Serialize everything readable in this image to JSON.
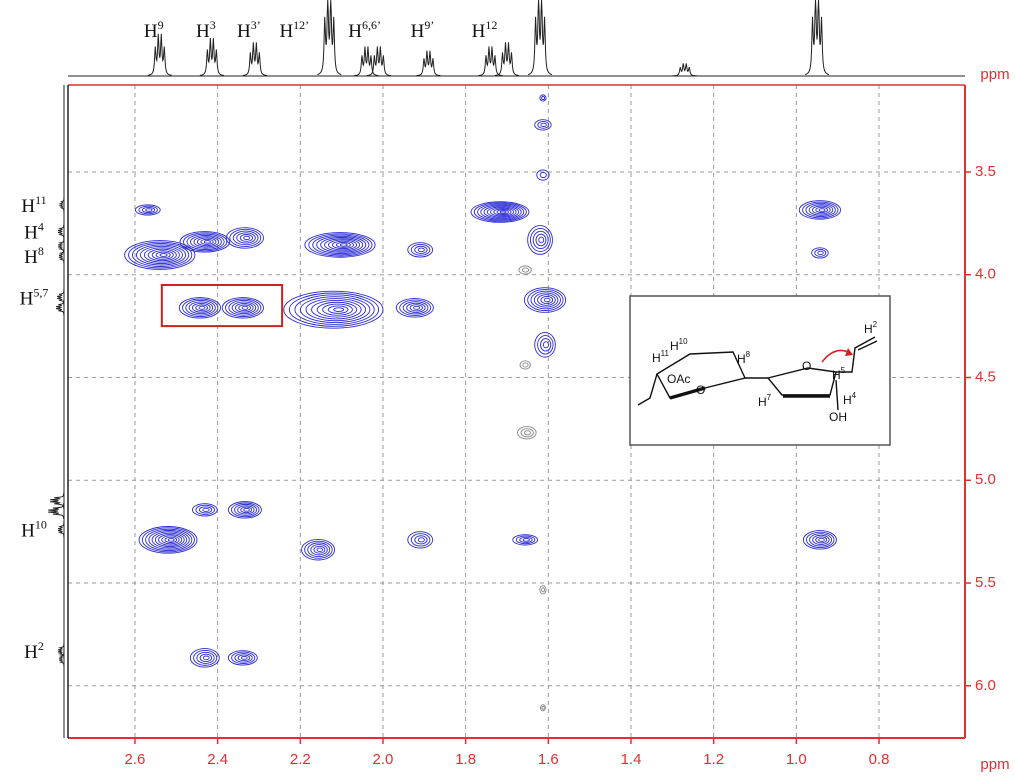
{
  "chart_data": {
    "type": "contour2d",
    "x_unit": "ppm",
    "y_unit": "ppm",
    "xlim": [
      2.762,
      0.592
    ],
    "ylim": [
      3.077,
      6.254
    ],
    "xticks": [
      2.6,
      2.4,
      2.2,
      {
        "value": 2.0,
        "label": "2.0"
      },
      1.8,
      1.6,
      1.4,
      1.2,
      {
        "value": 1.0,
        "label": "1.0"
      },
      0.8
    ],
    "yticks": [
      3.5,
      {
        "value": 4.0,
        "label": "4.0"
      },
      4.5,
      {
        "value": 5.0,
        "label": "5.0"
      },
      5.5,
      {
        "value": 6.0,
        "label": "6.0"
      }
    ],
    "grid": true,
    "axis_color": "#e03030",
    "peaks": {
      "x": [
        2.569,
        2.54,
        2.431,
        2.334,
        2.443,
        2.339,
        2.104,
        1.91,
        2.12,
        1.923,
        1.717,
        1.62,
        1.608,
        1.608,
        1.613,
        1.613,
        1.613,
        1.656,
        1.656,
        1.652,
        0.943,
        0.943,
        2.52,
        2.431,
        2.334,
        2.157,
        1.91,
        1.656,
        0.943,
        2.431,
        2.339,
        1.613,
        1.613
      ],
      "values": [
        3.685,
        3.904,
        3.84,
        3.821,
        4.161,
        4.161,
        3.855,
        3.879,
        4.17,
        4.161,
        3.695,
        3.831,
        4.123,
        4.341,
        3.515,
        3.271,
        3.14,
        3.977,
        4.439,
        4.769,
        3.685,
        3.894,
        5.29,
        5.144,
        5.144,
        5.338,
        5.29,
        5.29,
        5.29,
        5.864,
        5.864,
        5.533,
        6.107
      ],
      "widths": [
        0.06,
        0.17,
        0.12,
        0.09,
        0.1,
        0.1,
        0.17,
        0.06,
        0.24,
        0.09,
        0.14,
        0.06,
        0.1,
        0.05,
        0.03,
        0.04,
        0.015,
        0.03,
        0.025,
        0.045,
        0.1,
        0.04,
        0.14,
        0.06,
        0.08,
        0.08,
        0.06,
        0.06,
        0.08,
        0.07,
        0.07,
        0.015,
        0.012
      ],
      "heights": [
        0.05,
        0.14,
        0.1,
        0.1,
        0.1,
        0.1,
        0.12,
        0.07,
        0.18,
        0.09,
        0.1,
        0.14,
        0.12,
        0.12,
        0.05,
        0.05,
        0.03,
        0.04,
        0.04,
        0.06,
        0.09,
        0.05,
        0.13,
        0.06,
        0.08,
        0.1,
        0.08,
        0.05,
        0.09,
        0.09,
        0.07,
        0.04,
        0.03
      ],
      "colors": [
        "#2a2ad6",
        "#2a2ad6",
        "#2a2ad6",
        "#2a2ad6",
        "#2a2ad6",
        "#2a2ad6",
        "#2a2ad6",
        "#2a2ad6",
        "#2a2ad6",
        "#2a2ad6",
        "#2a2ad6",
        "#2a2ad6",
        "#2a2ad6",
        "#2a2ad6",
        "#2a2ad6",
        "#2a2ad6",
        "#2a2ad6",
        "#888888",
        "#888888",
        "#888888",
        "#2a2ad6",
        "#2a2ad6",
        "#2a2ad6",
        "#2a2ad6",
        "#2a2ad6",
        "#2a2ad6",
        "#2a2ad6",
        "#2a2ad6",
        "#2a2ad6",
        "#2a2ad6",
        "#2a2ad6",
        "#888888",
        "#888888"
      ]
    },
    "highlight": {
      "x": [
        2.535,
        2.244
      ],
      "y": [
        4.05,
        4.25
      ],
      "color": "#cc2222"
    },
    "top_projection": {
      "x": [
        2.54,
        2.414,
        2.31,
        2.13,
        2.04,
        2.01,
        1.89,
        1.74,
        1.7,
        1.62,
        1.27,
        0.95
      ],
      "values": [
        0.5,
        0.45,
        0.4,
        1.0,
        0.35,
        0.35,
        0.3,
        0.35,
        0.4,
        1.0,
        0.15,
        1.0
      ]
    },
    "left_projection": {
      "y": [
        3.66,
        3.79,
        3.86,
        3.91,
        4.11,
        4.16,
        5.1,
        5.15,
        5.24,
        5.83,
        5.87
      ],
      "values": [
        0.2,
        0.3,
        0.3,
        0.25,
        0.35,
        0.4,
        0.7,
        0.8,
        0.3,
        0.3,
        0.25
      ]
    },
    "top_labels": [
      {
        "base": "H",
        "sup": "9",
        "x": 2.54
      },
      {
        "base": "H",
        "sup": "3",
        "x": 2.414
      },
      {
        "base": "H",
        "sup": "3’",
        "x": 2.31
      },
      {
        "base": "H",
        "sup": "12’",
        "x": 2.2
      },
      {
        "base": "H",
        "sup": "6,6’",
        "x": 2.03
      },
      {
        "base": "H",
        "sup": "9’",
        "x": 1.89
      },
      {
        "base": "H",
        "sup": "12",
        "x": 1.74
      }
    ],
    "left_labels": [
      {
        "base": "H",
        "sup": "11",
        "y": 3.66
      },
      {
        "base": "H",
        "sup": "4",
        "y": 3.79
      },
      {
        "base": "H",
        "sup": "8",
        "y": 3.91
      },
      {
        "base": "H",
        "sup": "5,7",
        "y": 4.11
      },
      {
        "base": "H",
        "sup": "10",
        "y": 5.24
      },
      {
        "base": "H",
        "sup": "2",
        "y": 5.83
      }
    ]
  },
  "inset": {
    "labels": [
      {
        "base": "H",
        "sup": "11"
      },
      {
        "base": "H",
        "sup": "10"
      },
      {
        "base": "H",
        "sup": "8"
      },
      {
        "base": "H",
        "sup": "7"
      },
      {
        "base": "H",
        "sup": "5"
      },
      {
        "base": "H",
        "sup": "4"
      },
      {
        "base": "H",
        "sup": "2"
      }
    ],
    "texts": [
      "OAc",
      "O",
      "O",
      "OH"
    ]
  }
}
